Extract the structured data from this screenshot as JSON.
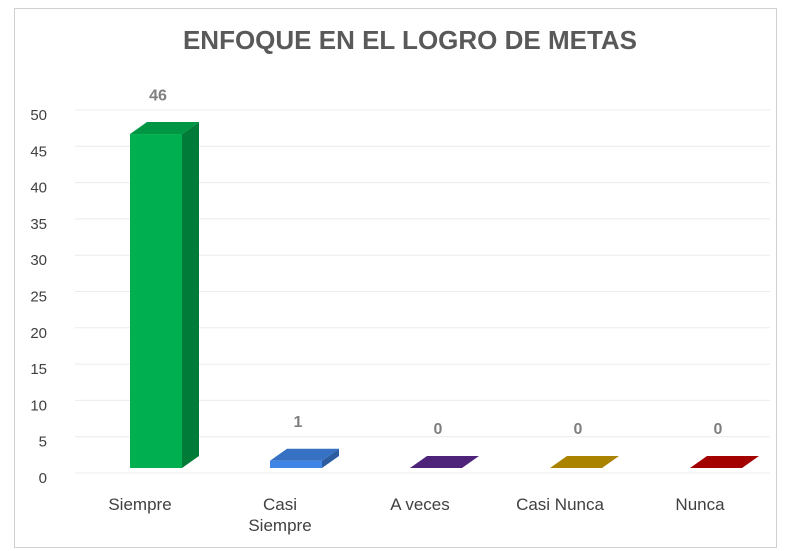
{
  "chart_data": {
    "type": "bar3d",
    "title": "ENFOQUE EN EL LOGRO DE METAS",
    "categories": [
      "Siempre",
      "Casi Siempre",
      "A veces",
      "Casi Nunca",
      "Nunca"
    ],
    "values": [
      46,
      1,
      0,
      0,
      0
    ],
    "colors": [
      "#00b050",
      "#3f85e6",
      "#5c2a91",
      "#c89a00",
      "#c00000"
    ],
    "ylim": [
      0,
      50
    ],
    "yticks": [
      0,
      5,
      10,
      15,
      20,
      25,
      30,
      35,
      40,
      45,
      50
    ],
    "grid": true
  }
}
